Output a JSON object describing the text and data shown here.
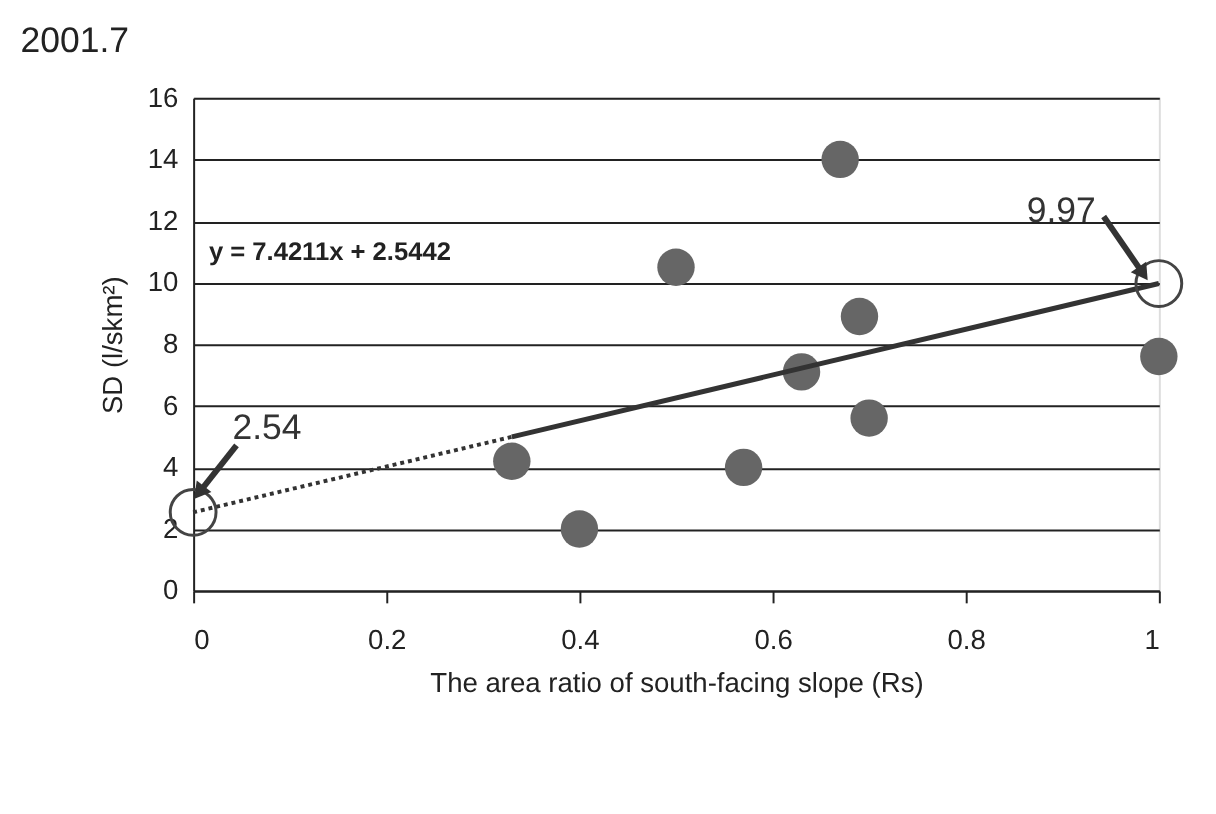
{
  "chart_data": {
    "type": "scatter",
    "title": "2001.7",
    "xlabel": "The area ratio of south-facing slope (Rs)",
    "ylabel": "SD (l/skm²)",
    "xlim": [
      0,
      1
    ],
    "xticks": [
      0,
      0.2,
      0.4,
      0.6,
      0.8,
      1
    ],
    "ylim": [
      0,
      16
    ],
    "yticks": [
      0,
      2,
      4,
      6,
      8,
      10,
      12,
      14,
      16
    ],
    "grid": "y",
    "series": [
      {
        "marker": "circle",
        "color": "#666666",
        "x": [
          0.33,
          0.4,
          0.5,
          0.57,
          0.63,
          0.67,
          0.69,
          0.7,
          1.0
        ],
        "values": [
          4.2,
          2.0,
          10.5,
          4.0,
          7.1,
          14.0,
          8.9,
          5.6,
          7.6
        ]
      },
      {
        "type": "line",
        "line_style": "solid",
        "color": "#333333",
        "x": [
          0.33,
          1.0
        ],
        "values": [
          4.99,
          9.97
        ]
      },
      {
        "type": "line",
        "line_style": "dotted",
        "color": "#333333",
        "x": [
          0,
          0.33
        ],
        "values": [
          2.54,
          4.99
        ]
      },
      {
        "type": "scatter",
        "marker": "circle",
        "color": "#444444",
        "x": [
          0,
          1.0
        ],
        "values": [
          2.54,
          9.97
        ]
      }
    ],
    "annotations": [
      "y = 7.4211x + 2.5442",
      {
        "text": "2.54",
        "x": 0,
        "y": 2.54
      },
      {
        "text": "9.97",
        "x": 1.0,
        "y": 9.97
      }
    ]
  }
}
